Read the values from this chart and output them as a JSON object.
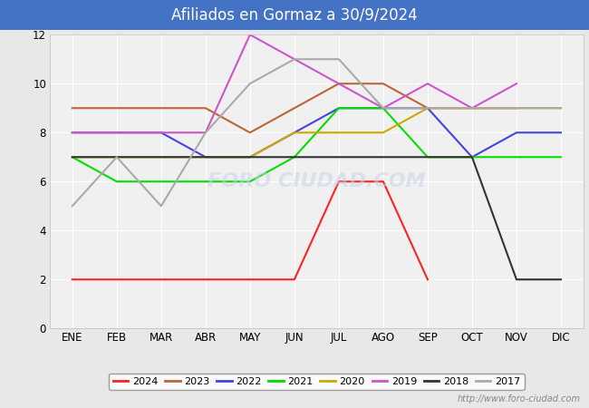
{
  "title": "Afiliados en Gormaz a 30/9/2024",
  "title_bg": "#4472c4",
  "title_color": "white",
  "months": [
    "ENE",
    "FEB",
    "MAR",
    "ABR",
    "MAY",
    "JUN",
    "JUL",
    "AGO",
    "SEP",
    "OCT",
    "NOV",
    "DIC"
  ],
  "series": {
    "2024": {
      "color": "#ff2222",
      "data": [
        2,
        2,
        2,
        2,
        2,
        2,
        6,
        6,
        2,
        null,
        null,
        null
      ]
    },
    "2023": {
      "color": "#bc6535",
      "data": [
        9,
        9,
        9,
        9,
        8,
        9,
        10,
        10,
        9,
        9,
        9,
        null
      ]
    },
    "2022": {
      "color": "#4444dd",
      "data": [
        8,
        8,
        8,
        7,
        7,
        8,
        9,
        9,
        9,
        7,
        8,
        8
      ]
    },
    "2021": {
      "color": "#00dd00",
      "data": [
        7,
        6,
        6,
        6,
        6,
        7,
        9,
        9,
        7,
        7,
        7,
        7
      ]
    },
    "2020": {
      "color": "#ccaa00",
      "data": [
        7,
        7,
        7,
        7,
        7,
        8,
        8,
        8,
        9,
        9,
        9,
        9
      ]
    },
    "2019": {
      "color": "#cc55cc",
      "data": [
        8,
        8,
        8,
        8,
        12,
        11,
        10,
        9,
        10,
        9,
        10,
        null
      ]
    },
    "2018": {
      "color": "#333333",
      "data": [
        7,
        7,
        7,
        7,
        7,
        7,
        7,
        7,
        7,
        7,
        2,
        2
      ]
    },
    "2017": {
      "color": "#aaaaaa",
      "data": [
        5,
        7,
        5,
        8,
        10,
        11,
        11,
        9,
        9,
        9,
        9,
        9
      ]
    }
  },
  "ylim": [
    0,
    12
  ],
  "yticks": [
    0,
    2,
    4,
    6,
    8,
    10,
    12
  ],
  "url": "http://www.foro-ciudad.com",
  "legend_order": [
    "2024",
    "2023",
    "2022",
    "2021",
    "2020",
    "2019",
    "2018",
    "2017"
  ],
  "bg_color": "#e8e8e8",
  "plot_bg": "#f0f0f0",
  "title_fontsize": 12
}
